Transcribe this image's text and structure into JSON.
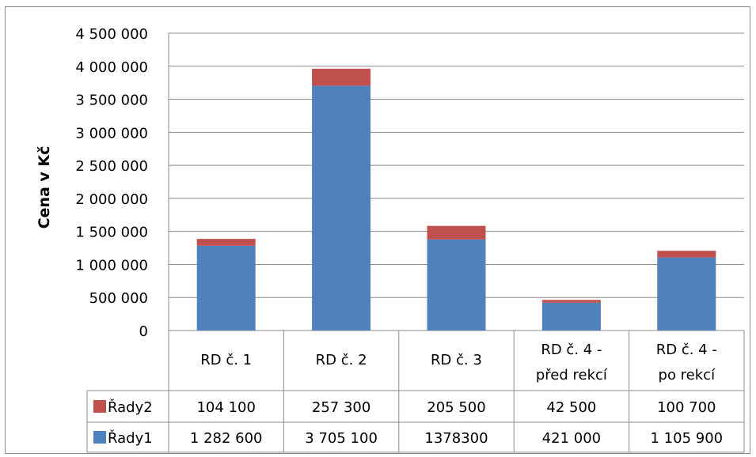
{
  "chart_data": {
    "type": "bar",
    "stacked": true,
    "ylabel": "Cena v Kč",
    "ylim": [
      0,
      4500000
    ],
    "yticks": [
      0,
      500000,
      1000000,
      1500000,
      2000000,
      2500000,
      3000000,
      3500000,
      4000000,
      4500000
    ],
    "ytick_labels": [
      "0",
      "500 000",
      "1 000 000",
      "1 500 000",
      "2 000 000",
      "2 500 000",
      "3 000 000",
      "3 500 000",
      "4 000 000",
      "4 500 000"
    ],
    "grid": true,
    "categories": [
      [
        "RD č. 1"
      ],
      [
        "RD č. 2"
      ],
      [
        "RD č. 3"
      ],
      [
        "RD č. 4 -",
        "před rekcí"
      ],
      [
        "RD č. 4 -",
        "po rekcí"
      ]
    ],
    "series": [
      {
        "name": "Řady1",
        "color": "#4f81bd",
        "values": [
          1282600,
          3705100,
          1378300,
          421000,
          1105900
        ],
        "labels": [
          "1 282 600",
          "3 705 100",
          "1378300",
          "421 000",
          "1 105 900"
        ]
      },
      {
        "name": "Řady2",
        "color": "#c0504d",
        "values": [
          104100,
          257300,
          205500,
          42500,
          100700
        ],
        "labels": [
          "104 100",
          "257 300",
          "205 500",
          "42 500",
          "100 700"
        ]
      }
    ],
    "data_table": true
  }
}
